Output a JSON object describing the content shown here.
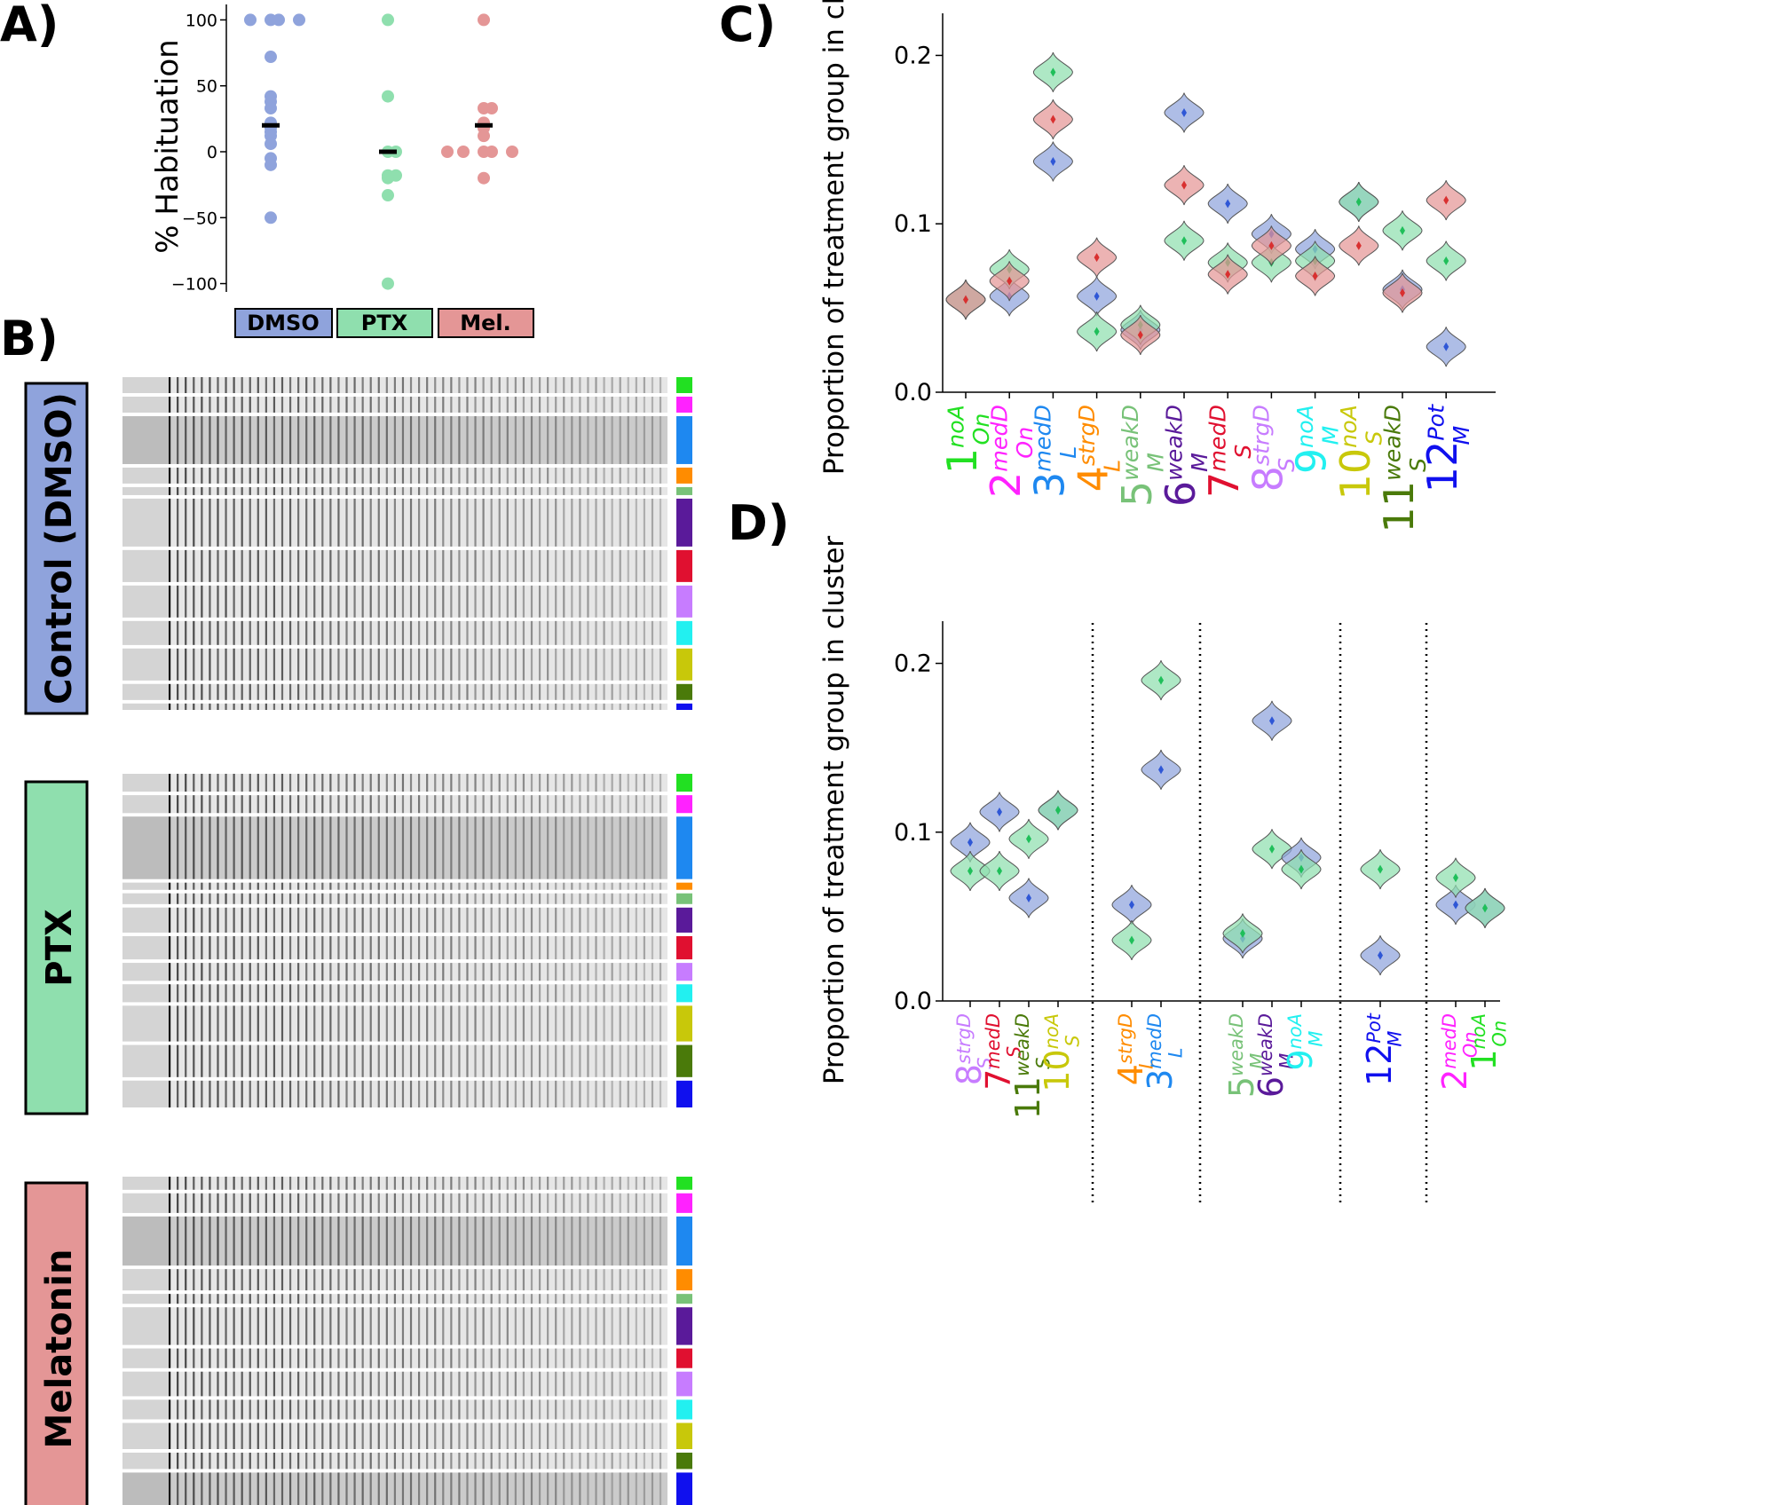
{
  "panel_labels": {
    "a": "A)",
    "b": "B)",
    "c": "C)",
    "d": "D)"
  },
  "colors": {
    "DMSO": "#8fa3dc",
    "PTX": "#8fdfae",
    "Mel": "#e49696",
    "DMSO_dark": "#2f57d6",
    "PTX_dark": "#1fbf5a",
    "Mel_dark": "#d93030"
  },
  "clusters": [
    {
      "num": "1",
      "sup": "noA",
      "sub": "On",
      "color": "#22e022"
    },
    {
      "num": "2",
      "sup": "medD",
      "sub": "On",
      "color": "#ff22ff"
    },
    {
      "num": "3",
      "sup": "medD",
      "sub": "L",
      "color": "#1e88f0"
    },
    {
      "num": "4",
      "sup": "strgD",
      "sub": "L",
      "color": "#ff8c00"
    },
    {
      "num": "5",
      "sup": "weakD",
      "sub": "M",
      "color": "#78c278"
    },
    {
      "num": "6",
      "sup": "weakD",
      "sub": "M",
      "color": "#5a1a9a"
    },
    {
      "num": "7",
      "sup": "medD",
      "sub": "S",
      "color": "#e01030"
    },
    {
      "num": "8",
      "sup": "strgD",
      "sub": "S",
      "color": "#c77cff"
    },
    {
      "num": "9",
      "sup": "noA",
      "sub": "M",
      "color": "#22f0f0"
    },
    {
      "num": "10",
      "sup": "noA",
      "sub": "S",
      "color": "#c8c80a"
    },
    {
      "num": "11",
      "sup": "weakD",
      "sub": "S",
      "color": "#4a7a0a"
    },
    {
      "num": "12",
      "sup": "Pot",
      "sub": "M",
      "color": "#1010ee"
    }
  ],
  "chart_data": [
    {
      "id": "A",
      "type": "scatter",
      "ylabel": "% Habituation",
      "yticks": [
        -100,
        -50,
        0,
        50,
        100
      ],
      "ylim": [
        -105,
        105
      ],
      "groups": [
        {
          "name": "DMSO",
          "values": [
            100,
            100,
            100,
            100,
            72,
            42,
            38,
            33,
            22,
            18,
            15,
            12,
            6,
            -5,
            -10,
            -50
          ],
          "mean": 20
        },
        {
          "name": "PTX",
          "values": [
            100,
            42,
            0,
            0,
            -18,
            -18,
            -20,
            -33,
            -100
          ],
          "mean": 0
        },
        {
          "name": "Mel.",
          "values": [
            100,
            33,
            33,
            22,
            20,
            18,
            12,
            0,
            0,
            0,
            0,
            0,
            -20
          ],
          "mean": 20
        }
      ]
    },
    {
      "id": "B",
      "type": "heatmap",
      "groups": [
        {
          "name": "Control (DMSO)",
          "rows": [
            1,
            1,
            3,
            1,
            0.5,
            3,
            2,
            2,
            1.5,
            2,
            1,
            0.4
          ]
        },
        {
          "name": "PTX",
          "rows": [
            1,
            1,
            3.5,
            0.4,
            0.6,
            1.4,
            1.3,
            1,
            1,
            2,
            1.8,
            1.5
          ]
        },
        {
          "name": "Melatonin",
          "rows": [
            0.8,
            1.2,
            3,
            1.3,
            0.6,
            2.3,
            1.2,
            1.5,
            1.2,
            1.6,
            1,
            2.2
          ]
        }
      ]
    },
    {
      "id": "C",
      "type": "violin",
      "ylabel": "Proportion of treatment group in cluster",
      "yticks": [
        0.0,
        0.1,
        0.2
      ],
      "ylim": [
        0.0,
        0.225
      ],
      "order": [
        1,
        2,
        3,
        4,
        5,
        6,
        7,
        8,
        9,
        10,
        11,
        12
      ],
      "series": [
        {
          "name": "DMSO",
          "values": [
            0.055,
            0.057,
            0.137,
            0.057,
            0.037,
            0.166,
            0.112,
            0.094,
            0.085,
            0.113,
            0.061,
            0.027
          ]
        },
        {
          "name": "PTX",
          "values": [
            0.055,
            0.073,
            0.19,
            0.036,
            0.04,
            0.09,
            0.077,
            0.077,
            0.078,
            0.113,
            0.096,
            0.078
          ]
        },
        {
          "name": "Mel.",
          "values": [
            0.055,
            0.066,
            0.162,
            0.08,
            0.034,
            0.123,
            0.07,
            0.087,
            0.069,
            0.087,
            0.059,
            0.114
          ]
        }
      ]
    },
    {
      "id": "D",
      "type": "violin",
      "ylabel": "Proportion of treatment group in cluster",
      "yticks": [
        0.0,
        0.1,
        0.2
      ],
      "ylim": [
        0.0,
        0.225
      ],
      "order": [
        8,
        7,
        11,
        10,
        4,
        3,
        5,
        6,
        9,
        12,
        2,
        1
      ],
      "separators_after": [
        4,
        6,
        9,
        10
      ],
      "series": [
        {
          "name": "DMSO",
          "values": [
            0.094,
            0.112,
            0.061,
            0.113,
            0.057,
            0.137,
            0.037,
            0.166,
            0.085,
            0.027,
            0.057,
            0.055
          ]
        },
        {
          "name": "PTX",
          "values": [
            0.077,
            0.077,
            0.096,
            0.113,
            0.036,
            0.19,
            0.04,
            0.09,
            0.078,
            0.078,
            0.073,
            0.055
          ]
        }
      ]
    }
  ]
}
